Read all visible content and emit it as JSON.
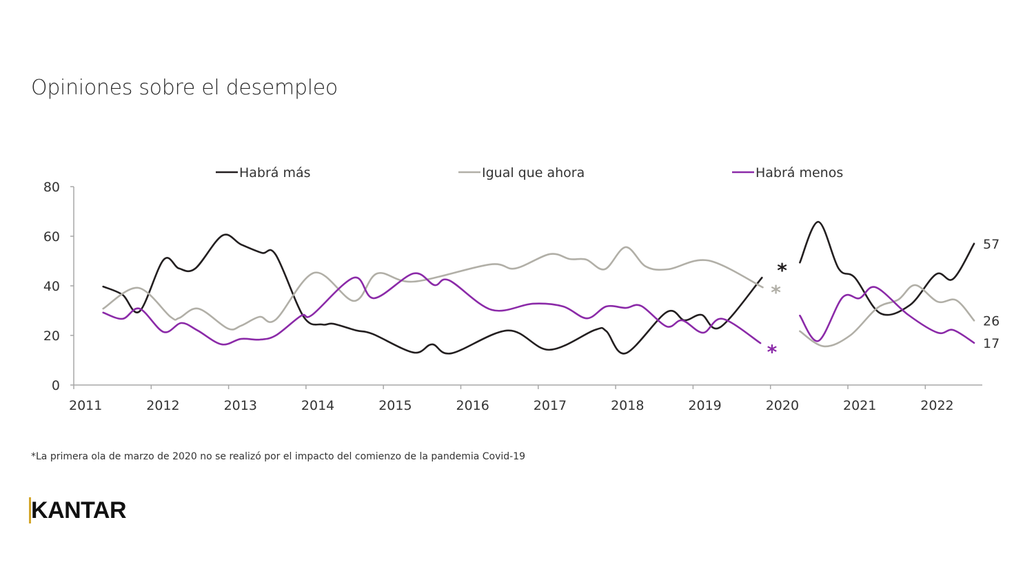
{
  "chart_data": {
    "type": "line",
    "title": "Opiniones sobre el desempleo",
    "xlabel": "",
    "ylabel": "",
    "xlim": [
      2011,
      2022.75
    ],
    "ylim": [
      0,
      80
    ],
    "yticks": [
      0,
      20,
      40,
      60,
      80
    ],
    "xticks": [
      "2011",
      "2012",
      "2013",
      "2014",
      "2015",
      "2016",
      "2017",
      "2018",
      "2019",
      "2020",
      "2021",
      "2022"
    ],
    "grid": false,
    "legend_position": "top",
    "series": [
      {
        "name": "Habrá más",
        "color": "#231f20",
        "end_label": "57",
        "segments": [
          {
            "x": [
              2011.38,
              2011.63,
              2011.85,
              2012.16,
              2012.36,
              2012.57,
              2012.92,
              2013.16,
              2013.43,
              2013.61,
              2013.97,
              2014.21,
              2014.35,
              2014.65,
              2014.86,
              2015.39,
              2015.63,
              2015.88,
              2016.61,
              2017.14,
              2017.73,
              2017.88,
              2018.13,
              2018.66,
              2018.89,
              2019.11,
              2019.35,
              2019.89
            ],
            "y": [
              39.7,
              36.4,
              29.7,
              50.5,
              47,
              47,
              60.3,
              56.7,
              53.3,
              52.5,
              27.5,
              24.4,
              24.7,
              22,
              20.6,
              13.1,
              16.4,
              12.8,
              22,
              14.2,
              22.2,
              21.7,
              12.8,
              29.4,
              26.1,
              28.3,
              23.3,
              43.3
            ]
          },
          {
            "x": [
              2020.38,
              2020.62,
              2020.88,
              2021.09,
              2021.42,
              2021.8,
              2022.14,
              2022.36,
              2022.63
            ],
            "y": [
              49.4,
              65.8,
              47,
              43.3,
              28.9,
              32.2,
              44.7,
              42.8,
              57
            ]
          }
        ]
      },
      {
        "name": "Igual que ahora",
        "color": "#b1afa7",
        "end_label": "26",
        "segments": [
          {
            "x": [
              2011.38,
              2011.83,
              2012.25,
              2012.36,
              2012.61,
              2012.99,
              2013.16,
              2013.4,
              2013.61,
              2014.11,
              2014.62,
              2014.92,
              2015.39,
              2016.37,
              2016.7,
              2017.15,
              2017.41,
              2017.62,
              2017.86,
              2018.13,
              2018.39,
              2018.68,
              2019.2,
              2019.9
            ],
            "y": [
              30.8,
              39.2,
              27.5,
              27,
              30.8,
              22.8,
              23.9,
              27.5,
              26.4,
              45.3,
              33.9,
              45,
              41.7,
              48.6,
              47,
              52.8,
              50.8,
              50.6,
              46.7,
              55.6,
              47.8,
              46.7,
              50.2,
              39.4
            ]
          },
          {
            "x": [
              2020.38,
              2020.69,
              2021.03,
              2021.38,
              2021.65,
              2021.87,
              2022.16,
              2022.4,
              2022.63
            ],
            "y": [
              21.7,
              15.6,
              20,
              31.1,
              34.4,
              40.3,
              33.6,
              34.2,
              26
            ]
          }
        ]
      },
      {
        "name": "Habrá menos",
        "color": "#8b2aa8",
        "end_label": "17",
        "segments": [
          {
            "x": [
              2011.38,
              2011.63,
              2011.85,
              2012.16,
              2012.39,
              2012.6,
              2012.91,
              2013.16,
              2013.4,
              2013.61,
              2013.94,
              2014.08,
              2014.62,
              2014.88,
              2015.39,
              2015.66,
              2015.85,
              2016.4,
              2016.93,
              2017.32,
              2017.63,
              2017.88,
              2018.13,
              2018.33,
              2018.66,
              2018.86,
              2019.13,
              2019.38,
              2019.87
            ],
            "y": [
              29.2,
              26.7,
              30.8,
              21.4,
              25,
              22,
              16.4,
              18.6,
              18.3,
              20,
              28,
              28.3,
              43.3,
              35,
              45,
              40.3,
              42.2,
              30.3,
              32.8,
              31.7,
              26.9,
              31.7,
              31.1,
              31.9,
              23.6,
              26.1,
              21.1,
              26.7,
              16.9
            ]
          },
          {
            "x": [
              2020.38,
              2020.62,
              2020.93,
              2021.15,
              2021.36,
              2021.78,
              2022.16,
              2022.36,
              2022.63
            ],
            "y": [
              28,
              17.8,
              35.3,
              35,
              39.4,
              28.3,
              21.1,
              22.2,
              17
            ]
          }
        ]
      }
    ],
    "annotations": [
      {
        "text": "*",
        "series": "Habrá más",
        "x": 2020.15,
        "y": 47
      },
      {
        "text": "*",
        "series": "Igual que ahora",
        "x": 2020.07,
        "y": 38
      },
      {
        "text": "*",
        "series": "Habrá menos",
        "x": 2020.02,
        "y": 14
      }
    ]
  },
  "footnote": "*La primera ola de marzo de 2020 no se realizó por el impacto del comienzo de la pandemia Covid-19",
  "logo": "KANTAR"
}
